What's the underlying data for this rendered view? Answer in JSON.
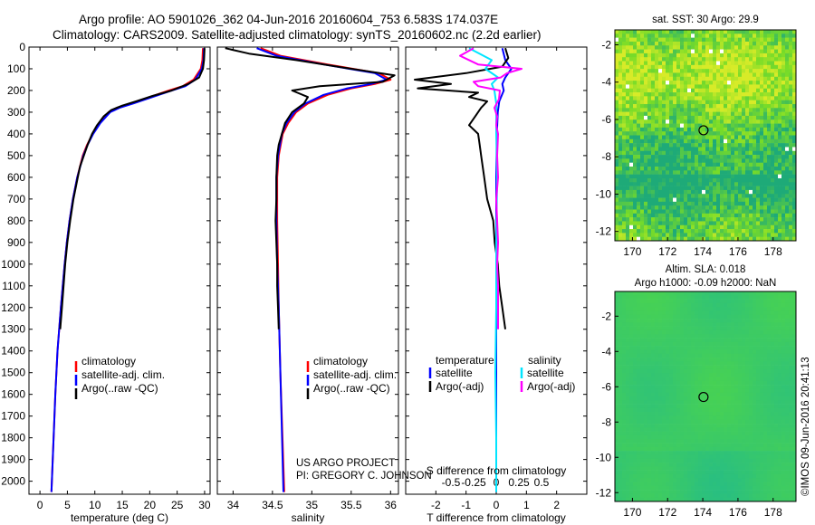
{
  "header": {
    "line1": "Argo profile: AO 5901026_362 04-Jun-2016 20160604_753 6.583S 174.037E",
    "line2": "Climatology: CARS2009. Satellite-adjusted climatology: synTS_20160602.nc (2.2d earlier)"
  },
  "credits": {
    "project": "US ARGO PROJECT",
    "pi": "PI: GREGORY C. JOHNSON",
    "imos": "©IMOS 09-Jun-2016 20:41:13"
  },
  "colors": {
    "climatology": "#ff0000",
    "satellite": "#0000ff",
    "argo": "#000000",
    "sal_satellite": "#00e5ff",
    "sal_argo": "#ff00ff"
  },
  "chart_data": [
    {
      "type": "line",
      "id": "temperature",
      "xlabel": "temperature (deg C)",
      "xlim": [
        -2,
        31
      ],
      "ylim": [
        0,
        2060
      ],
      "y_inverted": true,
      "xticks": [
        "0",
        "5",
        "10",
        "15",
        "20",
        "25",
        "30"
      ],
      "xtick_values": [
        0,
        5,
        10,
        15,
        20,
        25,
        30
      ],
      "yticks": [
        "0",
        "100",
        "200",
        "300",
        "400",
        "500",
        "600",
        "700",
        "800",
        "900",
        "1000",
        "1100",
        "1200",
        "1300",
        "1400",
        "1500",
        "1600",
        "1700",
        "1800",
        "1900",
        "2000"
      ],
      "ytick_values": [
        0,
        100,
        200,
        300,
        400,
        500,
        600,
        700,
        800,
        900,
        1000,
        1100,
        1200,
        1300,
        1400,
        1500,
        1600,
        1700,
        1800,
        1900,
        2000
      ],
      "legend": [
        "climatology",
        "satellite-adj. clim.",
        "Argo(..raw -QC)"
      ],
      "series": [
        {
          "name": "climatology",
          "depth": [
            5,
            60,
            100,
            150,
            180,
            200,
            230,
            260,
            280,
            300,
            350,
            400,
            450,
            500,
            600,
            700,
            800,
            900,
            1000,
            1200,
            1400,
            1600,
            2050
          ],
          "values": [
            29.7,
            29.6,
            29.3,
            28.0,
            26.0,
            23.5,
            20.0,
            16.5,
            14.0,
            12.5,
            10.8,
            9.6,
            8.6,
            7.8,
            6.8,
            6.0,
            5.4,
            4.9,
            4.5,
            3.8,
            3.2,
            2.8,
            2.1
          ]
        },
        {
          "name": "satellite-adj. clim.",
          "depth": [
            5,
            60,
            100,
            150,
            180,
            200,
            230,
            260,
            280,
            300,
            350,
            400,
            450,
            500,
            600,
            700,
            800,
            900,
            1000,
            1200,
            1400,
            1600,
            2050
          ],
          "values": [
            29.9,
            29.8,
            29.5,
            28.3,
            26.5,
            24.0,
            20.5,
            17.0,
            14.5,
            12.8,
            11.0,
            9.7,
            8.7,
            7.9,
            6.8,
            6.0,
            5.4,
            4.9,
            4.5,
            3.8,
            3.2,
            2.8,
            2.1
          ]
        },
        {
          "name": "Argo(..raw -QC)",
          "depth": [
            5,
            60,
            100,
            140,
            170,
            200,
            225,
            250,
            270,
            290,
            320,
            360,
            400,
            450,
            500,
            550,
            600,
            700,
            800,
            900,
            1000,
            1100,
            1200,
            1300
          ],
          "values": [
            30.0,
            29.9,
            29.7,
            29.0,
            27.0,
            24.0,
            20.5,
            17.5,
            15.0,
            13.0,
            11.6,
            10.4,
            9.5,
            8.7,
            8.0,
            7.3,
            6.9,
            6.1,
            5.5,
            5.0,
            4.6,
            4.3,
            4.0,
            3.7
          ]
        }
      ]
    },
    {
      "type": "line",
      "id": "salinity",
      "xlabel": "salinity",
      "xlim": [
        33.8,
        36.1
      ],
      "ylim": [
        0,
        2060
      ],
      "y_inverted": true,
      "xticks": [
        "34",
        "34.5",
        "35",
        "35.5",
        "36"
      ],
      "xtick_values": [
        34,
        34.5,
        35,
        35.5,
        36
      ],
      "legend": [
        "climatology",
        "satellite-adj. clim.",
        "Argo(..raw -QC)"
      ],
      "series": [
        {
          "name": "climatology",
          "depth": [
            5,
            40,
            80,
            120,
            150,
            170,
            190,
            220,
            260,
            300,
            350,
            400,
            500,
            600,
            800,
            1000,
            1200,
            1500,
            2050
          ],
          "values": [
            34.35,
            34.6,
            35.2,
            35.85,
            36.0,
            35.8,
            35.5,
            35.2,
            34.95,
            34.8,
            34.7,
            34.63,
            34.58,
            34.56,
            34.56,
            34.57,
            34.58,
            34.6,
            34.65
          ]
        },
        {
          "name": "satellite-adj. clim.",
          "depth": [
            5,
            40,
            80,
            120,
            150,
            170,
            190,
            220,
            260,
            300,
            350,
            400,
            500,
            600,
            800,
            1000,
            1200,
            1500,
            2050
          ],
          "values": [
            34.3,
            34.55,
            35.15,
            35.8,
            35.95,
            35.75,
            35.45,
            35.15,
            34.92,
            34.78,
            34.68,
            34.62,
            34.57,
            34.55,
            34.55,
            34.56,
            34.58,
            34.6,
            34.64
          ]
        },
        {
          "name": "Argo(..raw -QC)",
          "depth": [
            5,
            30,
            60,
            100,
            130,
            160,
            180,
            200,
            230,
            260,
            300,
            350,
            400,
            450,
            500,
            600,
            700,
            800,
            900,
            1000,
            1100,
            1200,
            1300
          ],
          "values": [
            33.9,
            34.2,
            34.8,
            35.5,
            36.05,
            35.9,
            35.1,
            34.75,
            34.95,
            34.9,
            34.75,
            34.66,
            34.62,
            34.58,
            34.56,
            34.55,
            34.55,
            34.54,
            34.55,
            34.56,
            34.56,
            34.57,
            34.58
          ]
        }
      ]
    },
    {
      "type": "line",
      "id": "difference",
      "xlabel": "T difference from climatology",
      "xlabel_top": "S difference from climatology",
      "xlim": [
        -3,
        3
      ],
      "ylim": [
        0,
        2060
      ],
      "y_inverted": true,
      "xticks": [
        "-2",
        "-1",
        "0",
        "1",
        "2"
      ],
      "xtick_values": [
        -2,
        -1,
        0,
        1,
        2
      ],
      "sticks": [
        "-0.5",
        "-0.25",
        "0",
        "0.25",
        "0.5"
      ],
      "stick_values": [
        -0.5,
        -0.25,
        0,
        0.25,
        0.5
      ],
      "legend_titles": [
        "temperature",
        "salinity"
      ],
      "legend": [
        "satellite",
        "Argo(-adj)",
        "satellite",
        "Argo(-adj)"
      ],
      "series": [
        {
          "name": "temperature satellite",
          "depth": [
            5,
            60,
            100,
            140,
            170,
            200,
            250,
            300,
            400,
            600,
            800,
            1000,
            1300,
            1600,
            2050
          ],
          "values": [
            0.2,
            0.3,
            0.5,
            0.3,
            0.2,
            0.25,
            0.1,
            0.05,
            0.02,
            0.0,
            0.0,
            0.0,
            0.0,
            0.0,
            0.0
          ]
        },
        {
          "name": "temperature Argo(-adj)",
          "depth": [
            5,
            50,
            90,
            120,
            150,
            170,
            190,
            210,
            230,
            250,
            280,
            320,
            360,
            400,
            450,
            500,
            600,
            700,
            800,
            900,
            1000,
            1100,
            1200,
            1300
          ],
          "values": [
            0.3,
            0.4,
            0.2,
            -1.0,
            -2.7,
            -1.5,
            -2.6,
            -0.6,
            -0.9,
            -0.3,
            -0.5,
            -0.7,
            -0.9,
            -0.6,
            -0.55,
            -0.5,
            -0.4,
            -0.3,
            -0.1,
            -0.05,
            0.05,
            0.1,
            0.2,
            0.3
          ]
        },
        {
          "name": "salinity satellite",
          "depth": [
            5,
            60,
            100,
            140,
            170,
            200,
            260,
            300,
            400,
            600,
            900,
            1200,
            1500,
            1800,
            2050
          ],
          "values": [
            -0.3,
            -0.05,
            -0.12,
            0.02,
            -0.05,
            -0.02,
            0.0,
            0.0,
            0.0,
            0.01,
            0.0,
            0.0,
            -0.01,
            0.0,
            0.0
          ]
        },
        {
          "name": "salinity Argo(-adj)",
          "depth": [
            5,
            40,
            80,
            100,
            120,
            140,
            160,
            180,
            200,
            240,
            280,
            320,
            360,
            400,
            500,
            600,
            700,
            800,
            900,
            1000,
            1100,
            1200,
            1300
          ],
          "values": [
            -0.25,
            -0.4,
            -0.2,
            0.28,
            0.12,
            0.05,
            -0.25,
            -0.2,
            0.04,
            0.03,
            -0.02,
            0.01,
            0.0,
            0.02,
            0.01,
            0.02,
            0.0,
            0.01,
            0.02,
            0.01,
            0.02,
            0.02,
            0.02
          ]
        }
      ]
    },
    {
      "type": "heatmap",
      "id": "sst-map",
      "title": "sat. SST: 30 Argo: 29.9",
      "xlim": [
        169,
        179.3
      ],
      "ylim": [
        -12.5,
        -1.2
      ],
      "xticks": [
        "170",
        "172",
        "174",
        "176",
        "178"
      ],
      "xtick_values": [
        170,
        172,
        174,
        176,
        178
      ],
      "yticks": [
        "-2",
        "-4",
        "-6",
        "-8",
        "-10",
        "-12"
      ],
      "ytick_values": [
        -2,
        -4,
        -6,
        -8,
        -10,
        -12
      ],
      "marker": {
        "lon": 174.04,
        "lat": -6.58
      }
    },
    {
      "type": "heatmap",
      "id": "sla-map",
      "title": "Altim. SLA: 0.018",
      "subtitle": "Argo h1000: -0.09 h2000: NaN",
      "xlim": [
        169,
        179.3
      ],
      "ylim": [
        -12.5,
        -0.6
      ],
      "xticks": [
        "170",
        "172",
        "174",
        "176",
        "178"
      ],
      "xtick_values": [
        170,
        172,
        174,
        176,
        178
      ],
      "yticks": [
        "-2",
        "-4",
        "-6",
        "-8",
        "-10",
        "-12"
      ],
      "ytick_values": [
        -2,
        -4,
        -6,
        -8,
        -10,
        -12
      ],
      "marker": {
        "lon": 174.04,
        "lat": -6.58
      }
    }
  ]
}
